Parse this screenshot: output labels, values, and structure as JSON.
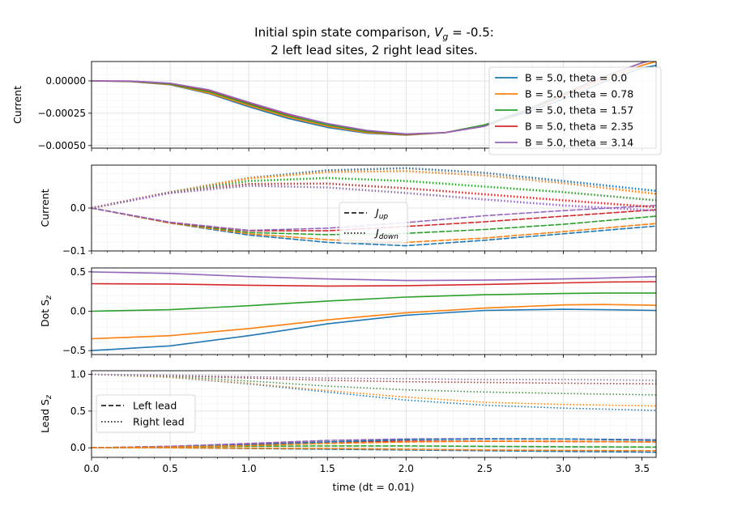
{
  "figure": {
    "title_line1_prefix": "Initial spin state comparison, ",
    "title_line1_var": "V",
    "title_line1_sub": "g",
    "title_line1_suffix": " = -0.5:",
    "title_line2": "2 left lead sites, 2 right lead sites.",
    "xlabel": "time (dt = 0.01)"
  },
  "colors": [
    "#1f77b4",
    "#ff7f0e",
    "#2ca02c",
    "#d62728",
    "#9467bd"
  ],
  "chart_data": [
    {
      "type": "line",
      "ylabel": "Current",
      "xlim": [
        0,
        3.59
      ],
      "ylim": [
        -0.00052,
        0.00015
      ],
      "yticks": [
        0.0,
        -0.00025,
        -0.0005
      ],
      "yticklabels": [
        "0.00000",
        "−0.00025",
        "−0.00050"
      ],
      "legend_position": "top-right",
      "series": [
        {
          "name": "B = 5.0, theta = 0.0",
          "color_index": 0,
          "style": "solid",
          "x": [
            0,
            0.25,
            0.5,
            0.75,
            1.0,
            1.25,
            1.5,
            1.75,
            2.0,
            2.25,
            2.5,
            2.75,
            3.0,
            3.25,
            3.5,
            3.59
          ],
          "y": [
            0,
            -5e-06,
            -3e-05,
            -0.0001,
            -0.0002,
            -0.00029,
            -0.00036,
            -0.000405,
            -0.00042,
            -0.0004,
            -0.00034,
            -0.00025,
            -0.00014,
            -1e-05,
            0.0001,
            0.00012
          ]
        },
        {
          "name": "B = 5.0, theta = 0.78",
          "color_index": 1,
          "style": "solid",
          "x": [
            0,
            0.25,
            0.5,
            0.75,
            1.0,
            1.25,
            1.5,
            1.75,
            2.0,
            2.25,
            2.5,
            2.75,
            3.0,
            3.25,
            3.5,
            3.59
          ],
          "y": [
            0,
            -4e-06,
            -2.8e-05,
            -9.5e-05,
            -0.00019,
            -0.00028,
            -0.00035,
            -0.0004,
            -0.000418,
            -0.0004,
            -0.00034,
            -0.00024,
            -0.00012,
            1e-05,
            0.00012,
            0.00015
          ]
        },
        {
          "name": "B = 5.0, theta = 1.57",
          "color_index": 2,
          "style": "solid",
          "x": [
            0,
            0.25,
            0.5,
            0.75,
            1.0,
            1.25,
            1.5,
            1.75,
            2.0,
            2.25,
            2.5,
            2.75,
            3.0,
            3.25,
            3.5,
            3.59
          ],
          "y": [
            0,
            -3e-06,
            -2.4e-05,
            -8.5e-05,
            -0.00018,
            -0.00027,
            -0.00034,
            -0.000392,
            -0.000415,
            -0.0004,
            -0.00034,
            -0.00023,
            -0.0001,
            3e-05,
            0.00014,
            0.00017
          ]
        },
        {
          "name": "B = 5.0, theta = 2.35",
          "color_index": 3,
          "style": "solid",
          "x": [
            0,
            0.25,
            0.5,
            0.75,
            1.0,
            1.25,
            1.5,
            1.75,
            2.0,
            2.25,
            2.5,
            2.75,
            3.0,
            3.25,
            3.5,
            3.59
          ],
          "y": [
            0,
            -2e-06,
            -2e-05,
            -7.5e-05,
            -0.00017,
            -0.00026,
            -0.00033,
            -0.000385,
            -0.000412,
            -0.0004,
            -0.00035,
            -0.00024,
            -0.00011,
            3e-05,
            0.00014,
            0.00017
          ]
        },
        {
          "name": "B = 5.0, theta = 3.14",
          "color_index": 4,
          "style": "solid",
          "x": [
            0,
            0.25,
            0.5,
            0.75,
            1.0,
            1.25,
            1.5,
            1.75,
            2.0,
            2.25,
            2.5,
            2.75,
            3.0,
            3.25,
            3.5,
            3.59
          ],
          "y": [
            0,
            -1e-06,
            -1.8e-05,
            -7e-05,
            -0.000165,
            -0.000255,
            -0.00033,
            -0.000383,
            -0.00041,
            -0.0004,
            -0.00035,
            -0.00024,
            -0.00011,
            3e-05,
            0.00014,
            0.00017
          ]
        }
      ]
    },
    {
      "type": "line",
      "ylabel": "Current",
      "xlim": [
        0,
        3.59
      ],
      "ylim": [
        -0.1,
        0.1
      ],
      "yticks": [
        0.0,
        -0.1
      ],
      "yticklabels": [
        "0.0",
        "−0.1"
      ],
      "legend_position": "lower-center",
      "legend": [
        {
          "label": "J",
          "sub": "up",
          "style": "dashed"
        },
        {
          "label": "J",
          "sub": "down",
          "style": "dotted"
        }
      ],
      "series": [
        {
          "name": "",
          "color_index": 0,
          "style": "dashed",
          "x": [
            0,
            0.5,
            1.0,
            1.5,
            2.0,
            2.5,
            3.0,
            3.59
          ],
          "y": [
            0,
            -0.035,
            -0.063,
            -0.08,
            -0.088,
            -0.075,
            -0.06,
            -0.042
          ]
        },
        {
          "name": "",
          "color_index": 1,
          "style": "dashed",
          "x": [
            0,
            0.5,
            1.0,
            1.5,
            2.0,
            2.5,
            3.0,
            3.59
          ],
          "y": [
            0,
            -0.035,
            -0.06,
            -0.074,
            -0.08,
            -0.07,
            -0.055,
            -0.036
          ]
        },
        {
          "name": "",
          "color_index": 2,
          "style": "dashed",
          "x": [
            0,
            0.5,
            1.0,
            1.5,
            2.0,
            2.5,
            3.0,
            3.59
          ],
          "y": [
            0,
            -0.034,
            -0.057,
            -0.062,
            -0.059,
            -0.05,
            -0.038,
            -0.019
          ]
        },
        {
          "name": "",
          "color_index": 3,
          "style": "dashed",
          "x": [
            0,
            0.5,
            1.0,
            1.5,
            2.0,
            2.5,
            3.0,
            3.59
          ],
          "y": [
            0,
            -0.034,
            -0.053,
            -0.053,
            -0.043,
            -0.032,
            -0.019,
            -0.004
          ]
        },
        {
          "name": "",
          "color_index": 4,
          "style": "dashed",
          "x": [
            0,
            0.5,
            1.0,
            1.5,
            2.0,
            2.5,
            3.0,
            3.59
          ],
          "y": [
            0,
            -0.033,
            -0.052,
            -0.047,
            -0.034,
            -0.018,
            -0.006,
            0.006
          ]
        },
        {
          "name": "",
          "color_index": 0,
          "style": "dotted",
          "x": [
            0,
            0.5,
            1.0,
            1.5,
            2.0,
            2.5,
            3.0,
            3.59
          ],
          "y": [
            0,
            0.037,
            0.07,
            0.088,
            0.093,
            0.082,
            0.063,
            0.04
          ]
        },
        {
          "name": "",
          "color_index": 1,
          "style": "dotted",
          "x": [
            0,
            0.5,
            1.0,
            1.5,
            2.0,
            2.5,
            3.0,
            3.59
          ],
          "y": [
            0,
            0.037,
            0.069,
            0.084,
            0.086,
            0.076,
            0.058,
            0.033
          ]
        },
        {
          "name": "",
          "color_index": 2,
          "style": "dotted",
          "x": [
            0,
            0.5,
            1.0,
            1.5,
            2.0,
            2.5,
            3.0,
            3.59
          ],
          "y": [
            0,
            0.036,
            0.063,
            0.07,
            0.063,
            0.05,
            0.037,
            0.018
          ]
        },
        {
          "name": "",
          "color_index": 3,
          "style": "dotted",
          "x": [
            0,
            0.5,
            1.0,
            1.5,
            2.0,
            2.5,
            3.0,
            3.59
          ],
          "y": [
            0,
            0.036,
            0.056,
            0.057,
            0.046,
            0.032,
            0.018,
            0.002
          ]
        },
        {
          "name": "",
          "color_index": 4,
          "style": "dotted",
          "x": [
            0,
            0.5,
            1.0,
            1.5,
            2.0,
            2.5,
            3.0,
            3.59
          ],
          "y": [
            0,
            0.035,
            0.052,
            0.048,
            0.035,
            0.02,
            0.006,
            -0.006
          ]
        }
      ]
    },
    {
      "type": "line",
      "ylabel": "Dot S",
      "ylabel_sub": "z",
      "xlim": [
        0,
        3.59
      ],
      "ylim": [
        -0.55,
        0.55
      ],
      "yticks": [
        0.5,
        0.0,
        -0.5
      ],
      "yticklabels": [
        "0.5",
        "0.0",
        "−0.5"
      ],
      "series": [
        {
          "name": "",
          "color_index": 0,
          "style": "solid",
          "x": [
            0,
            0.5,
            1.0,
            1.5,
            2.0,
            2.5,
            3.0,
            3.25,
            3.59
          ],
          "y": [
            -0.5,
            -0.44,
            -0.31,
            -0.16,
            -0.05,
            0.01,
            0.025,
            0.02,
            0.01
          ]
        },
        {
          "name": "",
          "color_index": 1,
          "style": "solid",
          "x": [
            0,
            0.5,
            1.0,
            1.5,
            2.0,
            2.5,
            3.0,
            3.25,
            3.59
          ],
          "y": [
            -0.35,
            -0.31,
            -0.22,
            -0.11,
            -0.02,
            0.04,
            0.08,
            0.085,
            0.075
          ]
        },
        {
          "name": "",
          "color_index": 2,
          "style": "solid",
          "x": [
            0,
            0.5,
            1.0,
            1.5,
            2.0,
            2.5,
            3.0,
            3.25,
            3.59
          ],
          "y": [
            0.0,
            0.02,
            0.07,
            0.13,
            0.18,
            0.21,
            0.225,
            0.23,
            0.23
          ]
        },
        {
          "name": "",
          "color_index": 3,
          "style": "solid",
          "x": [
            0,
            0.5,
            1.0,
            1.5,
            2.0,
            2.5,
            3.0,
            3.25,
            3.59
          ],
          "y": [
            0.35,
            0.345,
            0.33,
            0.32,
            0.325,
            0.34,
            0.36,
            0.37,
            0.375
          ]
        },
        {
          "name": "",
          "color_index": 4,
          "style": "solid",
          "x": [
            0,
            0.5,
            1.0,
            1.5,
            2.0,
            2.5,
            3.0,
            3.25,
            3.59
          ],
          "y": [
            0.5,
            0.48,
            0.44,
            0.41,
            0.39,
            0.395,
            0.41,
            0.42,
            0.44
          ]
        }
      ]
    },
    {
      "type": "line",
      "ylabel": "Lead S",
      "ylabel_sub": "z",
      "xlim": [
        0,
        3.59
      ],
      "ylim": [
        -0.13,
        1.05
      ],
      "yticks": [
        1.0,
        0.5,
        0.0
      ],
      "yticklabels": [
        "1.0",
        "0.5",
        "0.0"
      ],
      "legend_position": "center-left",
      "legend": [
        {
          "label": "Left lead",
          "style": "dashed"
        },
        {
          "label": "Right lead",
          "style": "dotted"
        }
      ],
      "series": [
        {
          "name": "",
          "color_index": 0,
          "style": "dotted",
          "x": [
            0,
            0.5,
            1.0,
            1.5,
            2.0,
            2.5,
            3.0,
            3.59
          ],
          "y": [
            1.0,
            0.96,
            0.87,
            0.76,
            0.65,
            0.58,
            0.54,
            0.51
          ]
        },
        {
          "name": "",
          "color_index": 1,
          "style": "dotted",
          "x": [
            0,
            0.5,
            1.0,
            1.5,
            2.0,
            2.5,
            3.0,
            3.59
          ],
          "y": [
            1.0,
            0.96,
            0.88,
            0.78,
            0.69,
            0.62,
            0.59,
            0.57
          ]
        },
        {
          "name": "",
          "color_index": 2,
          "style": "dotted",
          "x": [
            0,
            0.5,
            1.0,
            1.5,
            2.0,
            2.5,
            3.0,
            3.59
          ],
          "y": [
            1.0,
            0.97,
            0.91,
            0.84,
            0.79,
            0.76,
            0.74,
            0.72
          ]
        },
        {
          "name": "",
          "color_index": 3,
          "style": "dotted",
          "x": [
            0,
            0.5,
            1.0,
            1.5,
            2.0,
            2.5,
            3.0,
            3.59
          ],
          "y": [
            1.0,
            0.98,
            0.95,
            0.92,
            0.9,
            0.89,
            0.88,
            0.87
          ]
        },
        {
          "name": "",
          "color_index": 4,
          "style": "dotted",
          "x": [
            0,
            0.5,
            1.0,
            1.5,
            2.0,
            2.5,
            3.0,
            3.59
          ],
          "y": [
            1.0,
            0.99,
            0.97,
            0.95,
            0.94,
            0.93,
            0.93,
            0.92
          ]
        },
        {
          "name": "",
          "color_index": 0,
          "style": "dashed",
          "x": [
            0,
            0.5,
            1.0,
            1.5,
            2.0,
            2.5,
            3.0,
            3.59
          ],
          "y": [
            0.0,
            0.0,
            -0.01,
            -0.02,
            -0.03,
            -0.04,
            -0.05,
            -0.06
          ]
        },
        {
          "name": "",
          "color_index": 1,
          "style": "dashed",
          "x": [
            0,
            0.5,
            1.0,
            1.5,
            2.0,
            2.5,
            3.0,
            3.59
          ],
          "y": [
            0.0,
            0.0,
            -0.005,
            -0.01,
            -0.02,
            -0.03,
            -0.035,
            -0.04
          ]
        },
        {
          "name": "",
          "color_index": 2,
          "style": "dashed",
          "x": [
            0,
            0.5,
            1.0,
            1.5,
            2.0,
            2.5,
            3.0,
            3.59
          ],
          "y": [
            0.0,
            0.01,
            0.02,
            0.025,
            0.025,
            0.02,
            0.015,
            0.01
          ]
        },
        {
          "name": "",
          "color_index": 3,
          "style": "dashed",
          "x": [
            0,
            0.5,
            1.0,
            1.5,
            2.0,
            2.5,
            3.0,
            3.59
          ],
          "y": [
            0.0,
            0.02,
            0.05,
            0.08,
            0.09,
            0.09,
            0.085,
            0.08
          ]
        },
        {
          "name": "",
          "color_index": 4,
          "style": "dashed",
          "x": [
            0,
            0.5,
            1.0,
            1.5,
            2.0,
            2.5,
            3.0,
            3.59
          ],
          "y": [
            0.0,
            0.02,
            0.06,
            0.1,
            0.12,
            0.125,
            0.12,
            0.11
          ]
        },
        {
          "name": "",
          "color_index": 0,
          "style": "dashed",
          "x": [
            0,
            0.5,
            1.0,
            1.5,
            2.0,
            2.5,
            3.0,
            3.59
          ],
          "y": [
            0.0,
            0.01,
            0.04,
            0.08,
            0.11,
            0.12,
            0.12,
            0.1
          ]
        },
        {
          "name": "",
          "color_index": 1,
          "style": "dashed",
          "x": [
            0,
            0.5,
            1.0,
            1.5,
            2.0,
            2.5,
            3.0,
            3.59
          ],
          "y": [
            0.0,
            0.01,
            0.03,
            0.06,
            0.08,
            0.09,
            0.09,
            0.08
          ]
        }
      ]
    }
  ]
}
